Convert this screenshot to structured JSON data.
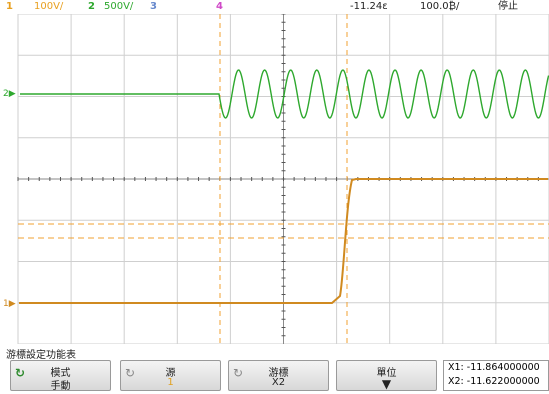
{
  "status_bar": {
    "ch1": {
      "num": "1",
      "scale": "100V/",
      "color": "#e8a020"
    },
    "ch2": {
      "num": "2",
      "scale": "500V/",
      "color": "#2ea82e"
    },
    "ch3": {
      "num": "3",
      "color": "#6688cc"
    },
    "ch4": {
      "num": "4",
      "color": "#d04ac8"
    },
    "time_delay": "-11.24ε",
    "time_scale": "100.0₿/",
    "run_state": "停止"
  },
  "screen": {
    "grid_color": "#cfcfcf",
    "ch1_color": "#d08a20",
    "ch2_color": "#2ea82e",
    "cursor_color": "#f0a030",
    "ch1_marker": "1▶",
    "ch2_marker": "2▶"
  },
  "menu": {
    "title": "游標設定功能表",
    "mode": {
      "line1": "模式",
      "line2": "手動"
    },
    "source": {
      "line1": "源",
      "line2": "1"
    },
    "cursors": {
      "line1": "游標",
      "line2": "X2"
    },
    "units": {
      "line1": "單位"
    },
    "readout": {
      "x1": "X1: -11.864000000",
      "x2": "X2: -11.622000000"
    }
  }
}
